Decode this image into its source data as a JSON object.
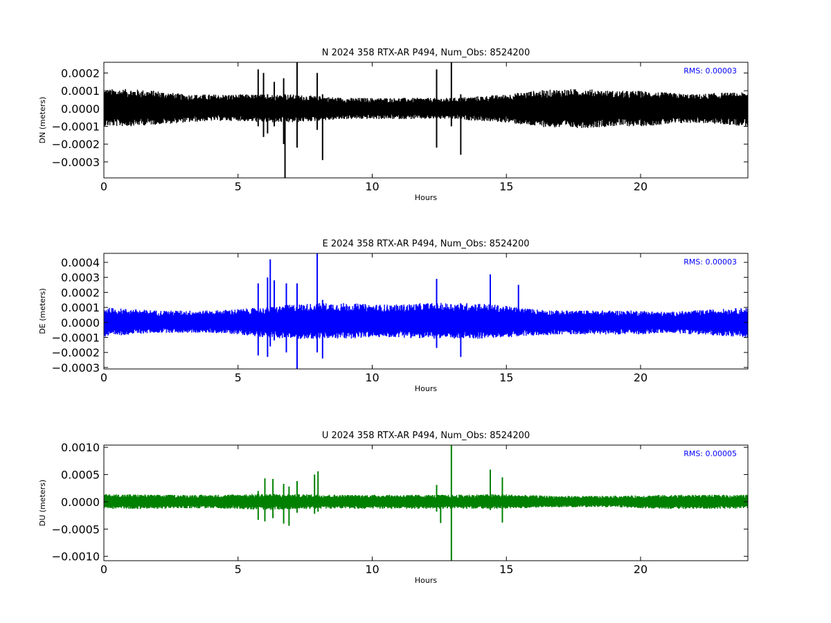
{
  "chart_data": [
    {
      "type": "line",
      "title": "N 2024 358 RTX-AR  P494, Num_Obs: 8524200",
      "xlabel": "Hours",
      "ylabel": "DN (meters)",
      "xlim": [
        0,
        24
      ],
      "ylim": [
        -0.00039,
        0.00026
      ],
      "xticks": [
        0,
        5,
        10,
        15,
        20
      ],
      "xtick_labels": [
        "0",
        "5",
        "10",
        "15",
        "20"
      ],
      "yticks": [
        0.0002,
        0.0001,
        0.0,
        -0.0001,
        -0.0002,
        -0.0003
      ],
      "ytick_labels": [
        "0.0002",
        "0.0001",
        "0.0000",
        "−0.0001",
        "−0.0002",
        "−0.0003"
      ],
      "annotation": "RMS:  0.00003",
      "annotation_color": "#0000ff",
      "series_color": "#000000",
      "envelope": {
        "x": [
          0,
          1,
          2,
          3,
          4,
          5,
          6,
          7,
          8,
          9,
          10,
          11,
          12,
          13,
          14,
          15,
          16,
          17,
          18,
          19,
          20,
          21,
          22,
          23,
          24
        ],
        "upper": [
          0.00011,
          0.00011,
          0.0001,
          8e-05,
          8e-05,
          8e-05,
          8e-05,
          8e-05,
          7e-05,
          6e-05,
          6e-05,
          6e-05,
          6e-05,
          6e-05,
          7e-05,
          8e-05,
          0.0001,
          0.00011,
          0.00011,
          0.0001,
          0.0001,
          9e-05,
          8e-05,
          9e-05,
          9e-05
        ],
        "lower": [
          -0.0001,
          -0.0001,
          -9e-05,
          -8e-05,
          -7e-05,
          -7e-05,
          -8e-05,
          -8e-05,
          -7e-05,
          -6e-05,
          -6e-05,
          -6e-05,
          -6e-05,
          -6e-05,
          -7e-05,
          -8e-05,
          -0.0001,
          -0.00011,
          -0.00011,
          -0.0001,
          -0.0001,
          -9e-05,
          -8e-05,
          -9e-05,
          -0.0001
        ]
      },
      "spikes": [
        {
          "x": 5.75,
          "low": -0.0001,
          "high": 0.00022
        },
        {
          "x": 5.95,
          "low": -0.00016,
          "high": 0.0002
        },
        {
          "x": 6.1,
          "low": -0.00014,
          "high": 8e-05
        },
        {
          "x": 6.35,
          "low": -0.0001,
          "high": 0.00015
        },
        {
          "x": 6.7,
          "low": -0.0002,
          "high": 0.00017
        },
        {
          "x": 6.75,
          "low": -0.00039,
          "high": 8e-05
        },
        {
          "x": 7.2,
          "low": -0.00022,
          "high": 0.00026
        },
        {
          "x": 7.95,
          "low": -0.00012,
          "high": 0.0002
        },
        {
          "x": 8.15,
          "low": -0.00029,
          "high": 8e-05
        },
        {
          "x": 12.4,
          "low": -0.00022,
          "high": 0.00022
        },
        {
          "x": 12.95,
          "low": -0.0001,
          "high": 0.00026
        },
        {
          "x": 13.3,
          "low": -0.00026,
          "high": 8e-05
        }
      ]
    },
    {
      "type": "line",
      "title": "E 2024 358 RTX-AR  P494, Num_Obs: 8524200",
      "xlabel": "Hours",
      "ylabel": "DE (meters)",
      "xlim": [
        0,
        24
      ],
      "ylim": [
        -0.00031,
        0.00046
      ],
      "xticks": [
        0,
        5,
        10,
        15,
        20
      ],
      "xtick_labels": [
        "0",
        "5",
        "10",
        "15",
        "20"
      ],
      "yticks": [
        0.0004,
        0.0003,
        0.0002,
        0.0001,
        0.0,
        -0.0001,
        -0.0002,
        -0.0003
      ],
      "ytick_labels": [
        "0.0004",
        "0.0003",
        "0.0002",
        "0.0001",
        "0.0000",
        "−0.0001",
        "−0.0002",
        "−0.0003"
      ],
      "annotation": "RMS:  0.00003",
      "annotation_color": "#0000ff",
      "series_color": "#0000ff",
      "envelope": {
        "x": [
          0,
          1,
          2,
          3,
          4,
          5,
          6,
          7,
          8,
          9,
          10,
          11,
          12,
          13,
          14,
          15,
          16,
          17,
          18,
          19,
          20,
          21,
          22,
          23,
          24
        ],
        "upper": [
          0.0001,
          9e-05,
          8e-05,
          8e-05,
          8e-05,
          9e-05,
          0.0001,
          0.00012,
          0.00013,
          0.00013,
          0.00012,
          0.00012,
          0.00013,
          0.00013,
          0.00013,
          0.00011,
          9e-05,
          8e-05,
          8e-05,
          8e-05,
          8e-05,
          7e-05,
          8e-05,
          9e-05,
          0.0001
        ],
        "lower": [
          -0.0001,
          -8e-05,
          -7e-05,
          -7e-05,
          -7e-05,
          -8e-05,
          -0.0001,
          -0.00011,
          -0.00011,
          -0.00011,
          -0.0001,
          -0.0001,
          -0.00011,
          -0.00011,
          -0.00011,
          -0.0001,
          -9e-05,
          -8e-05,
          -8e-05,
          -8e-05,
          -8e-05,
          -7e-05,
          -8e-05,
          -9e-05,
          -0.0001
        ]
      },
      "spikes": [
        {
          "x": 5.75,
          "low": -0.00022,
          "high": 0.00026
        },
        {
          "x": 6.1,
          "low": -0.00023,
          "high": 0.0003
        },
        {
          "x": 6.2,
          "low": -0.00016,
          "high": 0.00042
        },
        {
          "x": 6.35,
          "low": -0.00012,
          "high": 0.00028
        },
        {
          "x": 6.8,
          "low": -0.0002,
          "high": 0.00026
        },
        {
          "x": 7.2,
          "low": -0.00031,
          "high": 0.00026
        },
        {
          "x": 7.95,
          "low": -0.0002,
          "high": 0.00046
        },
        {
          "x": 8.15,
          "low": -0.00024,
          "high": 0.00015
        },
        {
          "x": 12.4,
          "low": -0.00017,
          "high": 0.00029
        },
        {
          "x": 13.3,
          "low": -0.00023,
          "high": 0.00012
        },
        {
          "x": 14.4,
          "low": -8e-05,
          "high": 0.00032
        },
        {
          "x": 15.45,
          "low": -9e-05,
          "high": 0.00025
        }
      ]
    },
    {
      "type": "line",
      "title": "U 2024 358 RTX-AR  P494, Num_Obs: 8524200",
      "xlabel": "Hours",
      "ylabel": "DU (meters)",
      "xlim": [
        0,
        24
      ],
      "ylim": [
        -0.00108,
        0.00104
      ],
      "xticks": [
        0,
        5,
        10,
        15,
        20
      ],
      "xtick_labels": [
        "0",
        "5",
        "10",
        "15",
        "20"
      ],
      "yticks": [
        0.001,
        0.0005,
        0.0,
        -0.0005,
        -0.001
      ],
      "ytick_labels": [
        "0.0010",
        "0.0005",
        "0.0000",
        "−0.0005",
        "−0.0010"
      ],
      "annotation": "RMS:  0.00005",
      "annotation_color": "#0000ff",
      "series_color": "#008000",
      "envelope": {
        "x": [
          0,
          1,
          2,
          3,
          4,
          5,
          6,
          7,
          8,
          9,
          10,
          11,
          12,
          13,
          14,
          15,
          16,
          17,
          18,
          19,
          20,
          21,
          22,
          23,
          24
        ],
        "upper": [
          0.00014,
          0.00014,
          0.00013,
          0.00013,
          0.00013,
          0.00014,
          0.00015,
          0.00014,
          0.00014,
          0.00013,
          0.00013,
          0.00013,
          0.00013,
          0.00013,
          0.00014,
          0.00014,
          0.00012,
          0.00011,
          0.00011,
          0.00011,
          0.00012,
          0.00013,
          0.00013,
          0.00013,
          0.00013
        ],
        "lower": [
          -0.00013,
          -0.00013,
          -0.00013,
          -0.00012,
          -0.00012,
          -0.00013,
          -0.00015,
          -0.00014,
          -0.00013,
          -0.00013,
          -0.00013,
          -0.00013,
          -0.00013,
          -0.00013,
          -0.00013,
          -0.00013,
          -0.00011,
          -0.0001,
          -0.0001,
          -0.0001,
          -0.00012,
          -0.00013,
          -0.00013,
          -0.00013,
          -0.00012
        ]
      },
      "spikes": [
        {
          "x": 5.75,
          "low": -0.00033,
          "high": 0.0002
        },
        {
          "x": 6.0,
          "low": -0.00036,
          "high": 0.00043
        },
        {
          "x": 6.3,
          "low": -0.0003,
          "high": 0.00042
        },
        {
          "x": 6.7,
          "low": -0.0004,
          "high": 0.00033
        },
        {
          "x": 6.9,
          "low": -0.00044,
          "high": 0.00028
        },
        {
          "x": 7.2,
          "low": -0.0002,
          "high": 0.00038
        },
        {
          "x": 7.85,
          "low": -0.00022,
          "high": 0.0005
        },
        {
          "x": 7.98,
          "low": -0.00018,
          "high": 0.00056
        },
        {
          "x": 12.4,
          "low": -0.00018,
          "high": 0.00031
        },
        {
          "x": 12.55,
          "low": -0.00039,
          "high": 0.0001
        },
        {
          "x": 12.95,
          "low": -0.00108,
          "high": 0.00104
        },
        {
          "x": 14.4,
          "low": -0.00015,
          "high": 0.00059
        },
        {
          "x": 14.85,
          "low": -0.00038,
          "high": 0.00045
        }
      ]
    }
  ]
}
